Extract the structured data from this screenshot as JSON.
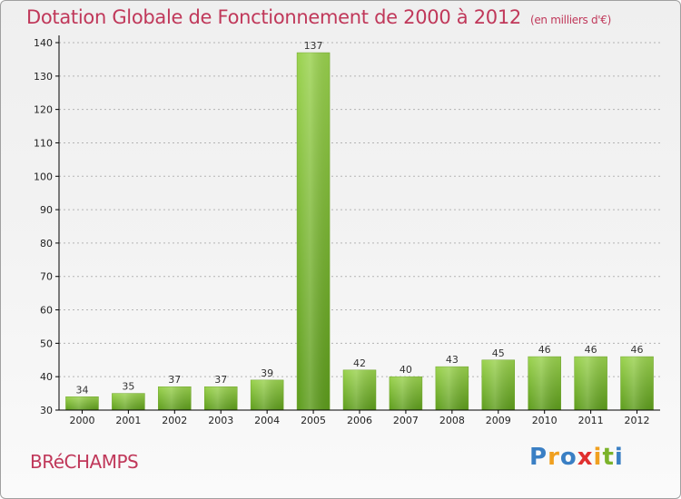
{
  "header": {
    "title": "Dotation Globale de Fonctionnement de 2000 à 2012",
    "unit": "(en milliers d'€)"
  },
  "commune": "BRéCHAMPS",
  "brand": {
    "letters": [
      "P",
      "r",
      "o",
      "x",
      "i",
      "t",
      "i"
    ],
    "colors": [
      "#3a7fc4",
      "#f0a020",
      "#3a7fc4",
      "#e0302f",
      "#f0a020",
      "#7cb32b",
      "#3a7fc4"
    ]
  },
  "colors": {
    "bar_top": "#9ad24e",
    "bar_bottom": "#5d9c1c",
    "axis": "#000000",
    "grid": "#b4b4b4",
    "title": "#c0385a"
  },
  "chart_data": {
    "type": "bar",
    "title": "Dotation Globale de Fonctionnement de 2000 à 2012",
    "xlabel": "",
    "ylabel": "en milliers d'€",
    "ylim": [
      30,
      140
    ],
    "yticks": [
      30,
      40,
      50,
      60,
      70,
      80,
      90,
      100,
      110,
      120,
      130,
      140
    ],
    "grid": true,
    "categories": [
      "2000",
      "2001",
      "2002",
      "2003",
      "2004",
      "2005",
      "2006",
      "2007",
      "2008",
      "2009",
      "2010",
      "2011",
      "2012"
    ],
    "values": [
      34,
      35,
      37,
      37,
      39,
      137,
      42,
      40,
      43,
      45,
      46,
      46,
      46
    ]
  }
}
